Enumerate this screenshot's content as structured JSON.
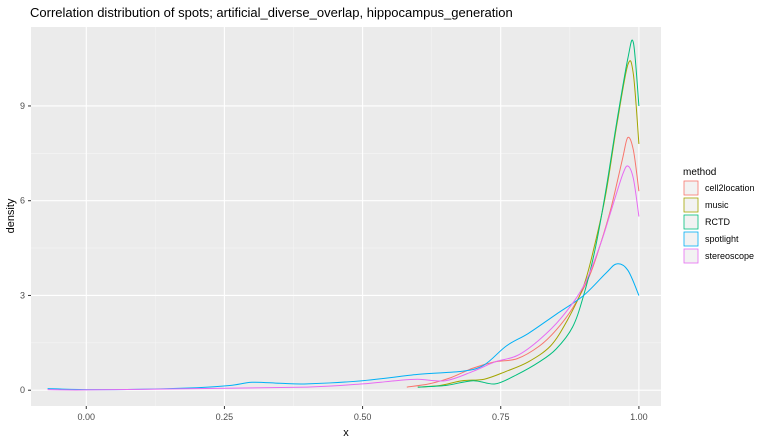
{
  "chart_data": {
    "type": "line",
    "title": "Correlation distribution of spots; artificial_diverse_overlap, hippocampus_generation",
    "xlabel": "x",
    "ylabel": "density",
    "xlim": [
      -0.1,
      1.04
    ],
    "ylim": [
      -0.5,
      11.5
    ],
    "x_ticks": [
      0.0,
      0.25,
      0.5,
      0.75,
      1.0
    ],
    "x_tick_labels": [
      "0.00",
      "0.25",
      "0.50",
      "0.75",
      "1.00"
    ],
    "y_ticks": [
      0,
      3,
      6,
      9
    ],
    "y_tick_labels": [
      "0",
      "3",
      "6",
      "9"
    ],
    "grid": true,
    "background": "#ebebeb",
    "legend": {
      "title": "method",
      "position": "right"
    },
    "series": [
      {
        "name": "cell2location",
        "color": "#F8766D",
        "points": [
          [
            0.58,
            0.1
          ],
          [
            0.62,
            0.2
          ],
          [
            0.66,
            0.4
          ],
          [
            0.7,
            0.7
          ],
          [
            0.74,
            0.9
          ],
          [
            0.78,
            1.0
          ],
          [
            0.82,
            1.4
          ],
          [
            0.85,
            1.9
          ],
          [
            0.88,
            2.6
          ],
          [
            0.91,
            3.6
          ],
          [
            0.93,
            4.6
          ],
          [
            0.95,
            5.8
          ],
          [
            0.97,
            7.3
          ],
          [
            0.98,
            8.0
          ],
          [
            0.99,
            7.6
          ],
          [
            1.0,
            6.3
          ]
        ]
      },
      {
        "name": "music",
        "color": "#A3A500",
        "points": [
          [
            0.6,
            0.1
          ],
          [
            0.64,
            0.15
          ],
          [
            0.68,
            0.3
          ],
          [
            0.72,
            0.35
          ],
          [
            0.76,
            0.6
          ],
          [
            0.8,
            0.9
          ],
          [
            0.84,
            1.4
          ],
          [
            0.87,
            2.2
          ],
          [
            0.9,
            3.3
          ],
          [
            0.92,
            4.6
          ],
          [
            0.94,
            6.2
          ],
          [
            0.96,
            8.4
          ],
          [
            0.98,
            10.3
          ],
          [
            0.99,
            10.0
          ],
          [
            1.0,
            7.8
          ]
        ]
      },
      {
        "name": "RCTD",
        "color": "#00BF7D",
        "points": [
          [
            0.6,
            0.1
          ],
          [
            0.65,
            0.15
          ],
          [
            0.7,
            0.3
          ],
          [
            0.74,
            0.2
          ],
          [
            0.78,
            0.5
          ],
          [
            0.82,
            0.9
          ],
          [
            0.85,
            1.3
          ],
          [
            0.88,
            2.0
          ],
          [
            0.9,
            3.0
          ],
          [
            0.92,
            4.4
          ],
          [
            0.94,
            6.3
          ],
          [
            0.96,
            8.5
          ],
          [
            0.98,
            10.5
          ],
          [
            0.99,
            11.0
          ],
          [
            1.0,
            9.0
          ]
        ]
      },
      {
        "name": "spotlight",
        "color": "#00B0F6",
        "points": [
          [
            -0.07,
            0.05
          ],
          [
            0.0,
            0.02
          ],
          [
            0.1,
            0.03
          ],
          [
            0.2,
            0.08
          ],
          [
            0.26,
            0.15
          ],
          [
            0.3,
            0.25
          ],
          [
            0.35,
            0.22
          ],
          [
            0.4,
            0.2
          ],
          [
            0.5,
            0.3
          ],
          [
            0.6,
            0.5
          ],
          [
            0.68,
            0.6
          ],
          [
            0.72,
            0.8
          ],
          [
            0.76,
            1.4
          ],
          [
            0.8,
            1.8
          ],
          [
            0.85,
            2.4
          ],
          [
            0.9,
            3.0
          ],
          [
            0.94,
            3.7
          ],
          [
            0.96,
            4.0
          ],
          [
            0.98,
            3.8
          ],
          [
            1.0,
            3.0
          ]
        ]
      },
      {
        "name": "stereoscope",
        "color": "#E76BF3",
        "points": [
          [
            -0.07,
            0.02
          ],
          [
            0.0,
            0.01
          ],
          [
            0.2,
            0.05
          ],
          [
            0.4,
            0.1
          ],
          [
            0.5,
            0.2
          ],
          [
            0.56,
            0.3
          ],
          [
            0.6,
            0.35
          ],
          [
            0.65,
            0.3
          ],
          [
            0.7,
            0.6
          ],
          [
            0.74,
            0.9
          ],
          [
            0.78,
            1.1
          ],
          [
            0.82,
            1.6
          ],
          [
            0.86,
            2.3
          ],
          [
            0.9,
            3.3
          ],
          [
            0.93,
            4.6
          ],
          [
            0.95,
            5.7
          ],
          [
            0.97,
            6.8
          ],
          [
            0.98,
            7.1
          ],
          [
            0.99,
            6.7
          ],
          [
            1.0,
            5.5
          ]
        ]
      }
    ]
  }
}
